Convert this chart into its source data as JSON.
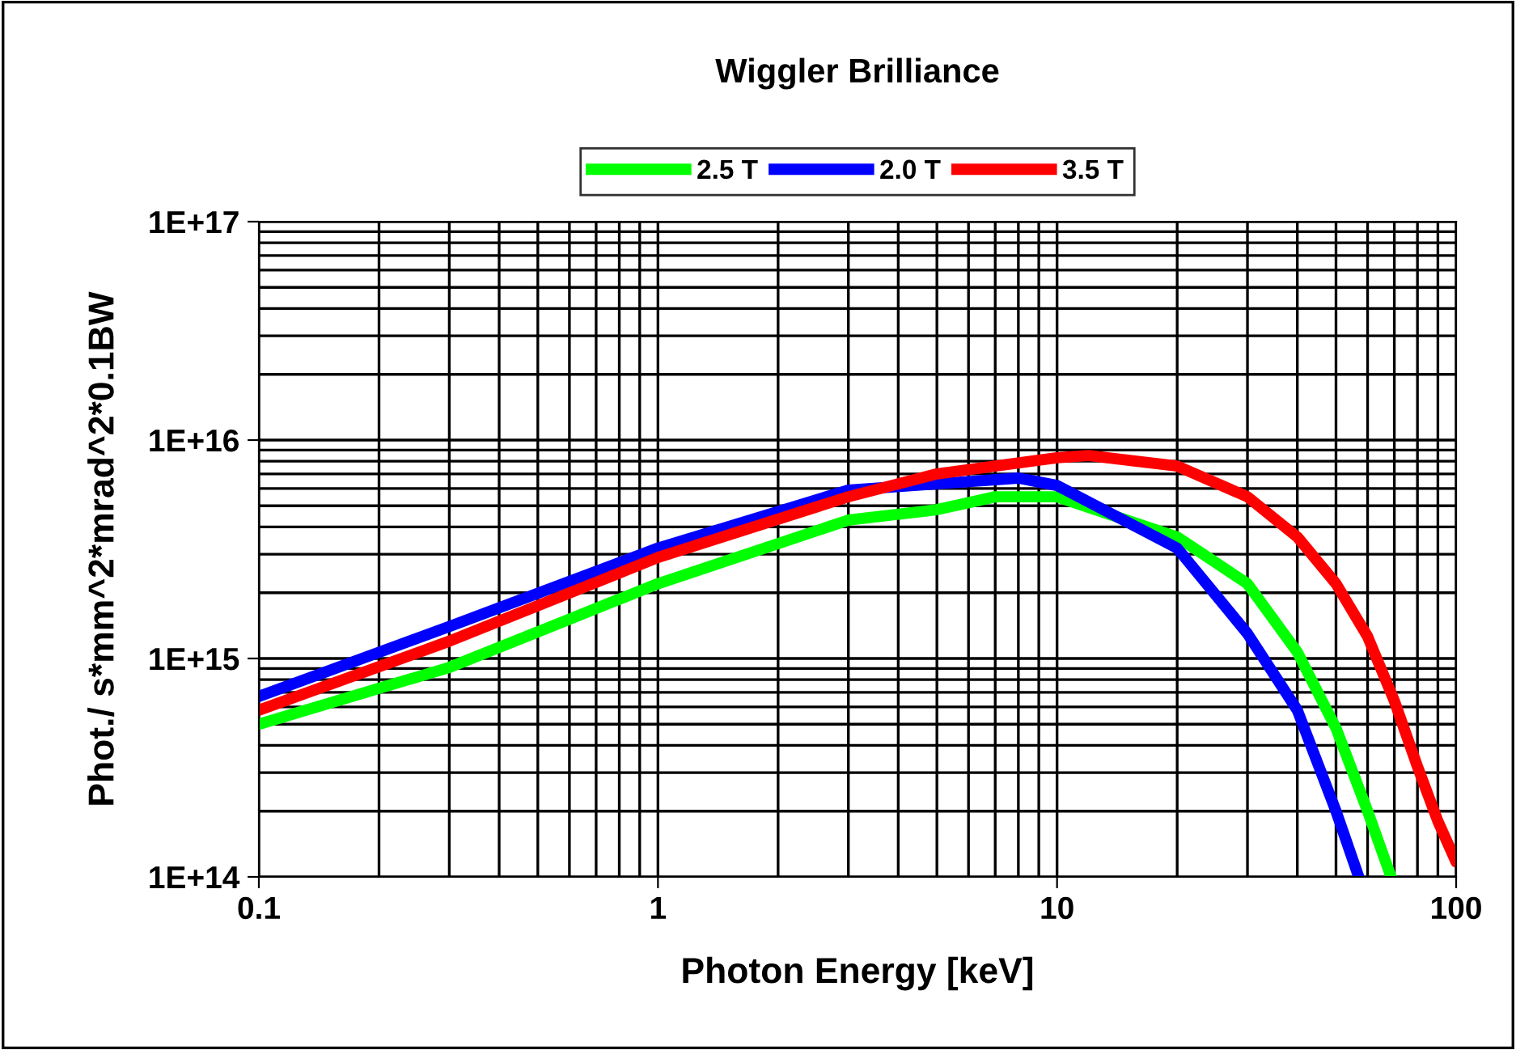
{
  "chart_data": {
    "type": "line",
    "title": "Wiggler Brilliance",
    "xlabel": "Photon Energy [keV]",
    "ylabel": "Phot./ s*mm^2*mrad^2*0.1BW",
    "log": "xy",
    "grid": true,
    "legend": "top",
    "line_style": "solid",
    "marker": "none",
    "xlim": [
      0.1,
      100
    ],
    "xticks": [
      0.1,
      1,
      10,
      100
    ],
    "ylim": [
      100000000000000.0,
      1e+17
    ],
    "yticks": [
      {
        "value": 100000000000000.0,
        "label": "1E+14"
      },
      {
        "value": 1000000000000000.0,
        "label": "1E+15"
      },
      {
        "value": 1e+16,
        "label": "1E+16"
      },
      {
        "value": 1e+17,
        "label": "1E+17"
      }
    ],
    "series": [
      {
        "name": "2.5 T",
        "color": "#00ff00",
        "x": [
          0.1,
          0.3,
          1,
          3,
          5,
          7,
          10,
          20,
          30,
          40,
          50,
          60,
          68.7
        ],
        "values": [
          500000000000000.0,
          910000000000000.0,
          2200000000000000.0,
          4300000000000000.0,
          4800000000000000.0,
          5500000000000000.0,
          5500000000000000.0,
          3600000000000000.0,
          2200000000000000.0,
          1070000000000000.0,
          480000000000000.0,
          200000000000000.0,
          100000000000000.0
        ]
      },
      {
        "name": "2.0 T",
        "color": "#0000ff",
        "x": [
          0.1,
          0.3,
          1,
          3,
          5,
          8,
          10,
          20,
          30,
          40,
          50,
          57
        ],
        "values": [
          670000000000000.0,
          1400000000000000.0,
          3200000000000000.0,
          5900000000000000.0,
          6300000000000000.0,
          6700000000000000.0,
          6200000000000000.0,
          3200000000000000.0,
          1300000000000000.0,
          580000000000000.0,
          200000000000000.0,
          100000000000000.0
        ]
      },
      {
        "name": "3.5 T",
        "color": "#ff0000",
        "x": [
          0.1,
          0.3,
          1,
          3,
          5,
          10,
          12,
          20,
          30,
          40,
          50,
          60,
          70,
          80,
          90,
          100
        ],
        "values": [
          580000000000000.0,
          1200000000000000.0,
          2900000000000000.0,
          5500000000000000.0,
          7000000000000000.0,
          8300000000000000.0,
          8500000000000000.0,
          7600000000000000.0,
          5500000000000000.0,
          3600000000000000.0,
          2200000000000000.0,
          1260000000000000.0,
          640000000000000.0,
          320000000000000.0,
          180000000000000.0,
          117000000000000.0
        ]
      }
    ]
  }
}
